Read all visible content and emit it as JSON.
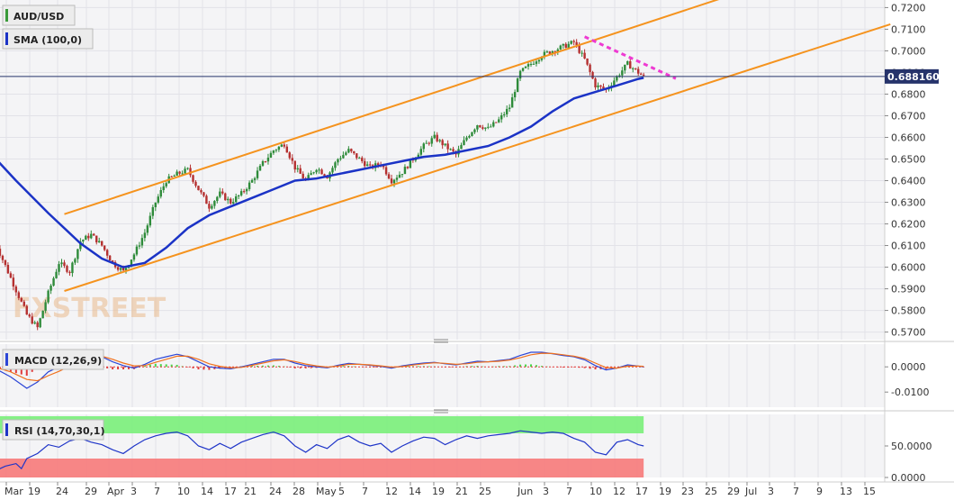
{
  "chart_data": [
    {
      "type": "candlestick",
      "symbol_label": "AUD/USD",
      "indicator_label": "SMA (100,0)",
      "last_price_label": "0.688160",
      "watermark": "FXSTREET",
      "yticks": [
        "0.7200",
        "0.7100",
        "0.7000",
        "0.6900",
        "0.6800",
        "0.6700",
        "0.6600",
        "0.6500",
        "0.6400",
        "0.6300",
        "0.6200",
        "0.6100",
        "0.6000",
        "0.5900",
        "0.5800",
        "0.5700"
      ],
      "ylim": [
        0.5665,
        0.7235
      ],
      "xticks": [
        "Mar",
        "19",
        "24",
        "29",
        "Apr",
        "3",
        "7",
        "10",
        "14",
        "17",
        "21",
        "24",
        "28",
        "May",
        "5",
        "7",
        "12",
        "14",
        "19",
        "21",
        "25",
        "Jun",
        "3",
        "7",
        "10",
        "12",
        "17",
        "19",
        "23",
        "25",
        "29",
        "Jul",
        "3",
        "7",
        "9",
        "13",
        "15"
      ],
      "close_path": [
        [
          0,
          0.612
        ],
        [
          3,
          0.595
        ],
        [
          6,
          0.578
        ],
        [
          8,
          0.572
        ],
        [
          10,
          0.588
        ],
        [
          12,
          0.602
        ],
        [
          14,
          0.598
        ],
        [
          16,
          0.612
        ],
        [
          18,
          0.615
        ],
        [
          20,
          0.61
        ],
        [
          22,
          0.602
        ],
        [
          24,
          0.598
        ],
        [
          26,
          0.606
        ],
        [
          28,
          0.616
        ],
        [
          30,
          0.63
        ],
        [
          32,
          0.64
        ],
        [
          34,
          0.643
        ],
        [
          36,
          0.645
        ],
        [
          38,
          0.636
        ],
        [
          40,
          0.628
        ],
        [
          42,
          0.634
        ],
        [
          44,
          0.63
        ],
        [
          46,
          0.634
        ],
        [
          48,
          0.64
        ],
        [
          50,
          0.648
        ],
        [
          52,
          0.654
        ],
        [
          54,
          0.657
        ],
        [
          56,
          0.646
        ],
        [
          58,
          0.64
        ],
        [
          60,
          0.646
        ],
        [
          62,
          0.642
        ],
        [
          64,
          0.65
        ],
        [
          66,
          0.654
        ],
        [
          68,
          0.65
        ],
        [
          70,
          0.646
        ],
        [
          72,
          0.648
        ],
        [
          74,
          0.64
        ],
        [
          76,
          0.644
        ],
        [
          78,
          0.65
        ],
        [
          80,
          0.656
        ],
        [
          82,
          0.66
        ],
        [
          84,
          0.656
        ],
        [
          86,
          0.652
        ],
        [
          88,
          0.66
        ],
        [
          90,
          0.666
        ],
        [
          92,
          0.664
        ],
        [
          94,
          0.668
        ],
        [
          96,
          0.674
        ],
        [
          98,
          0.69
        ],
        [
          100,
          0.694
        ],
        [
          102,
          0.698
        ],
        [
          104,
          0.7
        ],
        [
          106,
          0.702
        ],
        [
          108,
          0.704
        ],
        [
          110,
          0.696
        ],
        [
          112,
          0.684
        ],
        [
          114,
          0.682
        ],
        [
          116,
          0.688
        ],
        [
          118,
          0.694
        ],
        [
          120,
          0.69
        ],
        [
          121,
          0.688
        ]
      ],
      "sma_path": [
        [
          -2,
          0.656
        ],
        [
          4,
          0.64
        ],
        [
          10,
          0.625
        ],
        [
          16,
          0.611
        ],
        [
          20,
          0.604
        ],
        [
          24,
          0.6
        ],
        [
          28,
          0.602
        ],
        [
          32,
          0.609
        ],
        [
          36,
          0.618
        ],
        [
          40,
          0.624
        ],
        [
          44,
          0.628
        ],
        [
          48,
          0.632
        ],
        [
          52,
          0.636
        ],
        [
          56,
          0.64
        ],
        [
          60,
          0.641
        ],
        [
          64,
          0.643
        ],
        [
          68,
          0.645
        ],
        [
          72,
          0.647
        ],
        [
          76,
          0.649
        ],
        [
          80,
          0.651
        ],
        [
          84,
          0.652
        ],
        [
          88,
          0.654
        ],
        [
          92,
          0.656
        ],
        [
          96,
          0.66
        ],
        [
          100,
          0.665
        ],
        [
          104,
          0.672
        ],
        [
          108,
          0.678
        ],
        [
          112,
          0.681
        ],
        [
          116,
          0.684
        ],
        [
          120,
          0.687
        ],
        [
          121,
          0.6875
        ]
      ],
      "channel_upper": [
        [
          13,
          0.6245
        ],
        [
          137,
          0.7255
        ]
      ],
      "channel_lower": [
        [
          13,
          0.589
        ],
        [
          167,
          0.7123
        ]
      ],
      "resistance_dashed": [
        [
          110,
          0.7065
        ],
        [
          127,
          0.6872
        ]
      ],
      "last_price": 0.68816
    },
    {
      "type": "line",
      "indicator_label": "MACD (12,26,9)",
      "yticks": [
        "0.0000",
        "-0.0100"
      ],
      "ylim": [
        -0.016,
        0.009
      ],
      "macd_path": [
        [
          0,
          -0.0005
        ],
        [
          3,
          -0.004
        ],
        [
          6,
          -0.0085
        ],
        [
          8,
          -0.006
        ],
        [
          10,
          -0.002
        ],
        [
          12,
          0.0
        ],
        [
          14,
          0.002
        ],
        [
          16,
          0.004
        ],
        [
          18,
          0.0055
        ],
        [
          20,
          0.004
        ],
        [
          22,
          0.002
        ],
        [
          24,
          0.0005
        ],
        [
          26,
          -0.0005
        ],
        [
          28,
          0.001
        ],
        [
          30,
          0.003
        ],
        [
          32,
          0.004
        ],
        [
          34,
          0.005
        ],
        [
          36,
          0.004
        ],
        [
          38,
          0.002
        ],
        [
          40,
          0.0
        ],
        [
          42,
          -0.0005
        ],
        [
          44,
          -0.0008
        ],
        [
          46,
          0.0
        ],
        [
          48,
          0.001
        ],
        [
          50,
          0.002
        ],
        [
          52,
          0.003
        ],
        [
          54,
          0.003
        ],
        [
          56,
          0.0015
        ],
        [
          58,
          0.0005
        ],
        [
          60,
          0.0
        ],
        [
          62,
          -0.0004
        ],
        [
          64,
          0.0006
        ],
        [
          66,
          0.0014
        ],
        [
          68,
          0.001
        ],
        [
          70,
          0.0006
        ],
        [
          72,
          0.0002
        ],
        [
          74,
          -0.0005
        ],
        [
          76,
          0.0004
        ],
        [
          78,
          0.001
        ],
        [
          80,
          0.0015
        ],
        [
          82,
          0.0018
        ],
        [
          84,
          0.0012
        ],
        [
          86,
          0.0008
        ],
        [
          88,
          0.0015
        ],
        [
          90,
          0.0022
        ],
        [
          92,
          0.002
        ],
        [
          94,
          0.0025
        ],
        [
          96,
          0.003
        ],
        [
          98,
          0.0045
        ],
        [
          100,
          0.0058
        ],
        [
          102,
          0.0058
        ],
        [
          104,
          0.0052
        ],
        [
          106,
          0.0045
        ],
        [
          108,
          0.004
        ],
        [
          110,
          0.0028
        ],
        [
          112,
          0.0005
        ],
        [
          114,
          -0.0012
        ],
        [
          116,
          -0.0005
        ],
        [
          118,
          0.0008
        ],
        [
          120,
          0.0003
        ],
        [
          121,
          0.0
        ]
      ],
      "signal_path": [
        [
          0,
          0.0
        ],
        [
          3,
          -0.002
        ],
        [
          6,
          -0.005
        ],
        [
          8,
          -0.0055
        ],
        [
          10,
          -0.0035
        ],
        [
          12,
          -0.0018
        ],
        [
          14,
          0.0002
        ],
        [
          16,
          0.002
        ],
        [
          18,
          0.004
        ],
        [
          20,
          0.0042
        ],
        [
          22,
          0.003
        ],
        [
          24,
          0.0015
        ],
        [
          26,
          0.0004
        ],
        [
          28,
          0.0005
        ],
        [
          30,
          0.0018
        ],
        [
          32,
          0.003
        ],
        [
          34,
          0.0042
        ],
        [
          36,
          0.0042
        ],
        [
          38,
          0.003
        ],
        [
          40,
          0.0012
        ],
        [
          42,
          0.0002
        ],
        [
          44,
          -0.0004
        ],
        [
          46,
          -0.0002
        ],
        [
          48,
          0.0006
        ],
        [
          50,
          0.0015
        ],
        [
          52,
          0.0024
        ],
        [
          54,
          0.0028
        ],
        [
          56,
          0.0021
        ],
        [
          58,
          0.0011
        ],
        [
          60,
          0.0004
        ],
        [
          62,
          -0.0001
        ],
        [
          64,
          0.0003
        ],
        [
          66,
          0.001
        ],
        [
          68,
          0.001
        ],
        [
          70,
          0.0008
        ],
        [
          72,
          0.0004
        ],
        [
          74,
          -0.0001
        ],
        [
          76,
          0.0001
        ],
        [
          78,
          0.0007
        ],
        [
          80,
          0.0012
        ],
        [
          82,
          0.0016
        ],
        [
          84,
          0.0014
        ],
        [
          86,
          0.001
        ],
        [
          88,
          0.0012
        ],
        [
          90,
          0.0018
        ],
        [
          92,
          0.002
        ],
        [
          94,
          0.0022
        ],
        [
          96,
          0.0027
        ],
        [
          98,
          0.0036
        ],
        [
          100,
          0.0048
        ],
        [
          102,
          0.0054
        ],
        [
          104,
          0.0053
        ],
        [
          106,
          0.0048
        ],
        [
          108,
          0.0042
        ],
        [
          110,
          0.0033
        ],
        [
          112,
          0.0015
        ],
        [
          114,
          -0.0003
        ],
        [
          116,
          -0.0005
        ],
        [
          118,
          0.0003
        ],
        [
          120,
          0.0003
        ],
        [
          121,
          0.0002
        ]
      ]
    },
    {
      "type": "line",
      "indicator_label": "RSI (14,70,30,1)",
      "yticks": [
        "50.0000",
        "0.0000"
      ],
      "ylim": [
        0,
        100
      ],
      "overbought": 70,
      "oversold": 30,
      "rsi_path": [
        [
          0,
          10
        ],
        [
          2,
          18
        ],
        [
          4,
          22
        ],
        [
          5,
          14
        ],
        [
          6,
          30
        ],
        [
          8,
          38
        ],
        [
          10,
          52
        ],
        [
          12,
          48
        ],
        [
          14,
          58
        ],
        [
          16,
          62
        ],
        [
          18,
          56
        ],
        [
          20,
          52
        ],
        [
          22,
          44
        ],
        [
          24,
          38
        ],
        [
          26,
          50
        ],
        [
          28,
          60
        ],
        [
          30,
          66
        ],
        [
          32,
          70
        ],
        [
          34,
          72
        ],
        [
          36,
          66
        ],
        [
          38,
          50
        ],
        [
          40,
          44
        ],
        [
          42,
          54
        ],
        [
          44,
          46
        ],
        [
          46,
          56
        ],
        [
          48,
          62
        ],
        [
          50,
          68
        ],
        [
          52,
          72
        ],
        [
          54,
          66
        ],
        [
          56,
          50
        ],
        [
          58,
          40
        ],
        [
          60,
          52
        ],
        [
          62,
          46
        ],
        [
          64,
          60
        ],
        [
          66,
          66
        ],
        [
          68,
          56
        ],
        [
          70,
          50
        ],
        [
          72,
          54
        ],
        [
          74,
          40
        ],
        [
          76,
          50
        ],
        [
          78,
          58
        ],
        [
          80,
          64
        ],
        [
          82,
          62
        ],
        [
          84,
          52
        ],
        [
          86,
          60
        ],
        [
          88,
          66
        ],
        [
          90,
          62
        ],
        [
          92,
          66
        ],
        [
          94,
          68
        ],
        [
          96,
          70
        ],
        [
          98,
          74
        ],
        [
          100,
          72
        ],
        [
          102,
          70
        ],
        [
          104,
          72
        ],
        [
          106,
          70
        ],
        [
          108,
          62
        ],
        [
          110,
          56
        ],
        [
          112,
          40
        ],
        [
          114,
          36
        ],
        [
          116,
          56
        ],
        [
          118,
          60
        ],
        [
          120,
          52
        ],
        [
          121,
          50
        ]
      ]
    }
  ]
}
